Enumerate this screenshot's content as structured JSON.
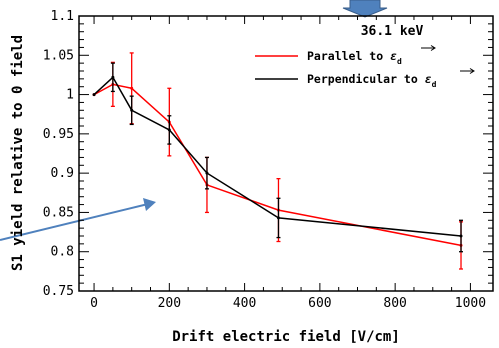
{
  "chart_data": {
    "type": "line",
    "xlabel": "Drift electric field [V/cm]",
    "ylabel": "S1 yield relative to 0 field",
    "annotation": "36.1 keV",
    "xlim": [
      -40,
      1060
    ],
    "ylim": [
      0.75,
      1.1
    ],
    "xticks": [
      "0",
      "200",
      "400",
      "600",
      "800",
      "1000"
    ],
    "yticks": [
      "0.75",
      "0.8",
      "0.85",
      "0.9",
      "0.95",
      "1",
      "1.05",
      "1.1"
    ],
    "legend_position": "top-right",
    "series": [
      {
        "name": "Parallel to ",
        "name_symbol": "ε",
        "name_subscript": "d",
        "color": "#ff0000",
        "x": [
          0,
          50,
          100,
          200,
          300,
          490,
          975
        ],
        "y": [
          1.0,
          1.013,
          1.008,
          0.965,
          0.885,
          0.853,
          0.808
        ],
        "err": [
          0,
          0.028,
          0.045,
          0.043,
          0.035,
          0.04,
          0.03
        ]
      },
      {
        "name": "Perpendicular to ",
        "name_symbol": "ε",
        "name_subscript": "d",
        "color": "#000000",
        "x": [
          0,
          50,
          100,
          200,
          300,
          490,
          975
        ],
        "y": [
          1.0,
          1.022,
          0.98,
          0.955,
          0.9,
          0.843,
          0.82
        ],
        "err": [
          0,
          0.018,
          0.018,
          0.018,
          0.02,
          0.025,
          0.02
        ]
      }
    ]
  },
  "colors": {
    "arrow": "#4f81bd",
    "arrow_outline": "#385d8a"
  }
}
